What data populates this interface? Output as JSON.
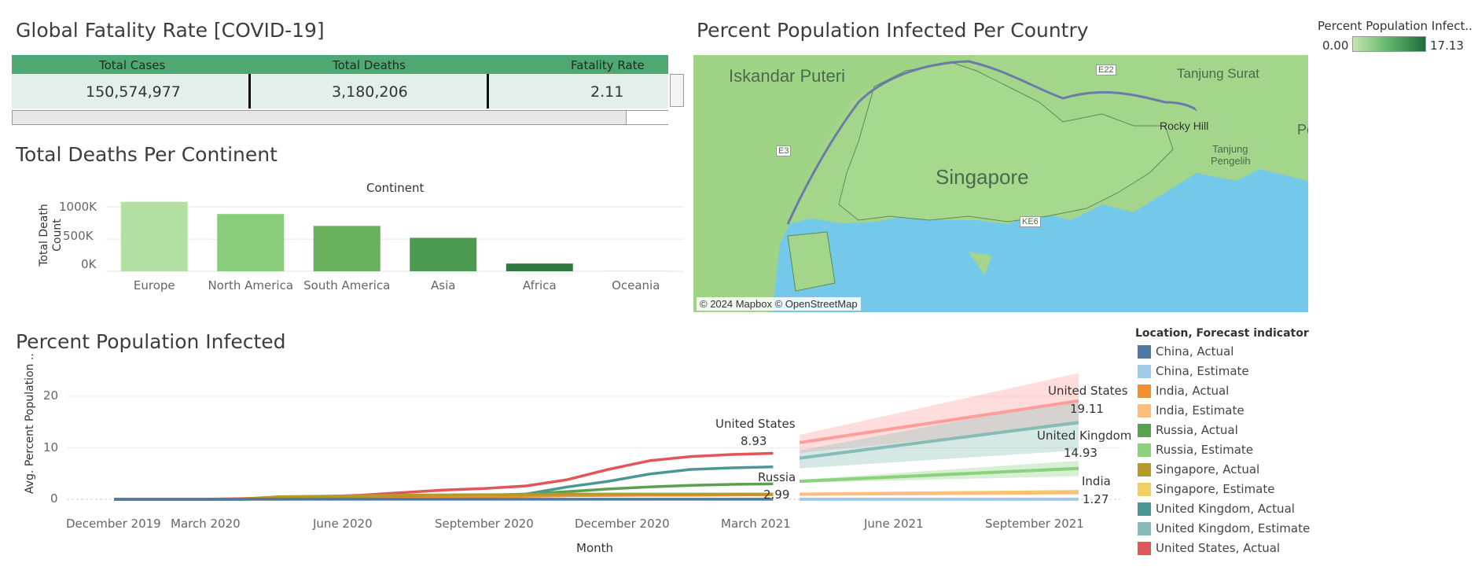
{
  "kpi": {
    "title": "Global Fatality Rate [COVID-19]",
    "headers": [
      "Total Cases",
      "Total Deaths",
      "Fatality Rate"
    ],
    "values": [
      "150,574,977",
      "3,180,206",
      "2.11"
    ]
  },
  "map": {
    "title": "Percent Population Infected Per Country",
    "credit": "© 2024 Mapbox © OpenStreetMap",
    "labels": [
      "Iskandar Puteri",
      "Tanjung Surat",
      "Singapore",
      "Rocky Hill",
      "Tanjung",
      "Pengelih",
      "Pe",
      "E22",
      "E3",
      "KE6"
    ],
    "legend_title": "Percent Population Infect..",
    "legend_min": "0.00",
    "legend_max": "17.13",
    "colors": {
      "land": "#a3d68a",
      "water": "#74c8ea",
      "grad_low": "#c3e6b0",
      "grad_high": "#1f6b3a"
    }
  },
  "bar": {
    "title": "Total Deaths Per Continent",
    "header": "Continent",
    "ylabel_line1": "Total Death",
    "ylabel_line2": "Count",
    "ticks": [
      "1000K",
      "500K",
      "0K"
    ]
  },
  "line": {
    "title": "Percent Population Infected",
    "ylabel": "Avg. Percent Population ..",
    "xlabel": "Month",
    "yticks": [
      "20",
      "10",
      "0"
    ],
    "xticks": [
      "December 2019",
      "March 2020",
      "June 2020",
      "September 2020",
      "December 2020",
      "March 2021",
      "June 2021",
      "September 2021"
    ],
    "legend_title": "Location, Forecast indicator",
    "legend_items": [
      "China, Actual",
      "China, Estimate",
      "India, Actual",
      "India, Estimate",
      "Russia, Actual",
      "Russia, Estimate",
      "Singapore, Actual",
      "Singapore, Estimate",
      "United Kingdom, Actual",
      "United Kingdom, Estimate",
      "United States, Actual"
    ],
    "legend_colors": [
      "#4e79a7",
      "#a0cbe8",
      "#f28e2b",
      "#ffbe7d",
      "#59a14f",
      "#8cd17d",
      "#b6992d",
      "#f1ce63",
      "#499894",
      "#86bcb6",
      "#e15759"
    ],
    "annotations": [
      {
        "name": "United States",
        "value": "8.93"
      },
      {
        "name": "Russia",
        "value": "2.99"
      },
      {
        "name": "United States",
        "value": "19.11"
      },
      {
        "name": "United Kingdom",
        "value": "14.93"
      },
      {
        "name": "India",
        "value": "1.27"
      }
    ]
  },
  "chart_data": [
    {
      "type": "bar",
      "title": "Total Deaths Per Continent",
      "xlabel": "Continent",
      "ylabel": "Total Death Count",
      "categories": [
        "Europe",
        "North America",
        "South America",
        "Asia",
        "Africa",
        "Oceania"
      ],
      "values": [
        1080000,
        890000,
        705000,
        520000,
        120000,
        1000
      ],
      "ylim": [
        0,
        1100000
      ],
      "colors": [
        "#b2e0a2",
        "#87cc78",
        "#68b05c",
        "#4b9a4f",
        "#2f7a40",
        "#2f7a40"
      ]
    },
    {
      "type": "line",
      "title": "Percent Population Infected",
      "xlabel": "Month",
      "ylabel": "Avg. Percent Population ..",
      "x": [
        "2019-12",
        "2020-01",
        "2020-02",
        "2020-03",
        "2020-04",
        "2020-05",
        "2020-06",
        "2020-07",
        "2020-08",
        "2020-09",
        "2020-10",
        "2020-11",
        "2020-12",
        "2021-01",
        "2021-02",
        "2021-03",
        "2021-04"
      ],
      "ylim": [
        -2,
        27
      ],
      "series": [
        {
          "name": "United States, Actual",
          "color": "#e15759",
          "values": [
            0,
            0,
            0,
            0.1,
            0.3,
            0.5,
            0.8,
            1.3,
            1.8,
            2.1,
            2.6,
            3.8,
            5.8,
            7.5,
            8.3,
            8.7,
            8.93
          ]
        },
        {
          "name": "United Kingdom, Actual",
          "color": "#499894",
          "values": [
            0,
            0,
            0,
            0,
            0.2,
            0.3,
            0.4,
            0.4,
            0.5,
            0.6,
            1.0,
            2.4,
            3.5,
            4.9,
            5.8,
            6.1,
            6.3
          ]
        },
        {
          "name": "Russia, Actual",
          "color": "#59a14f",
          "values": [
            0,
            0,
            0,
            0,
            0.1,
            0.2,
            0.3,
            0.5,
            0.6,
            0.8,
            1.0,
            1.5,
            2.0,
            2.4,
            2.7,
            2.9,
            2.99
          ]
        },
        {
          "name": "India, Actual",
          "color": "#f28e2b",
          "values": [
            0,
            0,
            0,
            0,
            0,
            0.05,
            0.1,
            0.2,
            0.3,
            0.5,
            0.6,
            0.7,
            0.75,
            0.8,
            0.8,
            0.85,
            0.9
          ]
        },
        {
          "name": "Singapore, Actual",
          "color": "#b6992d",
          "values": [
            0,
            0,
            0,
            0.05,
            0.5,
            0.6,
            0.7,
            0.8,
            0.85,
            0.9,
            0.9,
            1.0,
            1.0,
            1.0,
            1.0,
            1.0,
            1.0
          ]
        },
        {
          "name": "China, Actual",
          "color": "#4e79a7",
          "values": [
            0,
            0,
            0,
            0.01,
            0.01,
            0.01,
            0.01,
            0.01,
            0.01,
            0.01,
            0.01,
            0.01,
            0.01,
            0.01,
            0.01,
            0.01,
            0.01
          ]
        }
      ],
      "forecast_x": [
        "2021-05",
        "2021-10"
      ],
      "forecast": [
        {
          "name": "United States, Estimate",
          "color": "#ff9d9a",
          "values": [
            11.0,
            19.11
          ],
          "band": [
            [
              9.0,
              12.5
            ],
            [
              14.5,
              24.5
            ]
          ]
        },
        {
          "name": "United Kingdom, Estimate",
          "color": "#86bcb6",
          "values": [
            8.0,
            14.93
          ],
          "band": [
            [
              6.0,
              9.5
            ],
            [
              9.5,
              19.5
            ]
          ]
        },
        {
          "name": "Russia, Estimate",
          "color": "#8cd17d",
          "values": [
            3.5,
            6.0
          ],
          "band": [
            [
              3.2,
              3.8
            ],
            [
              4.5,
              7.5
            ]
          ]
        },
        {
          "name": "Singapore, Estimate",
          "color": "#f1ce63",
          "values": [
            1.0,
            1.5
          ],
          "band": [
            [
              0.9,
              1.1
            ],
            [
              1.2,
              1.8
            ]
          ]
        },
        {
          "name": "India, Estimate",
          "color": "#ffbe7d",
          "values": [
            1.0,
            1.27
          ],
          "band": [
            [
              0.9,
              1.1
            ],
            [
              1.0,
              1.5
            ]
          ]
        },
        {
          "name": "China, Estimate",
          "color": "#a0cbe8",
          "values": [
            0.01,
            0.01
          ],
          "band": [
            [
              0,
              0.02
            ],
            [
              0,
              0.02
            ]
          ]
        }
      ]
    }
  ]
}
